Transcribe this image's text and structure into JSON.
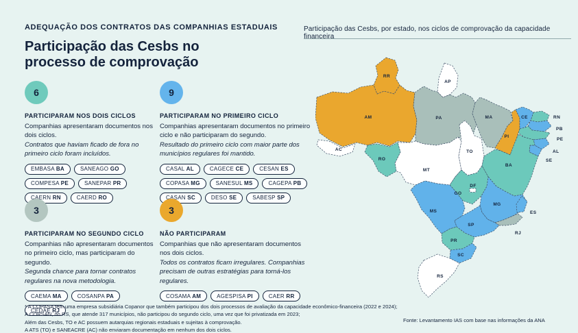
{
  "header": {
    "kicker": "ADEQUAÇÃO DOS CONTRATOS DAS COMPANHIAS ESTADUAIS",
    "title": "Participação das Cesbs no processo de comprovação",
    "map_caption": "Participação das Cesbs, por estado, nos ciclos de comprovação da capacidade financeira"
  },
  "sections": [
    {
      "count": "6",
      "circle_color": "#6fcabc",
      "heading": "PARTICIPARAM NOS DOIS CICLOS",
      "body": "Companhias apresentaram documentos nos dois ciclos.",
      "note": "Contratos que haviam ficado de fora no primeiro ciclo foram incluídos.",
      "tags": [
        {
          "company": "EMBASA",
          "uf": "BA"
        },
        {
          "company": "SANEAGO",
          "uf": "GO"
        },
        {
          "company": "COMPESA",
          "uf": "PE"
        },
        {
          "company": "SANEPAR",
          "uf": "PR"
        },
        {
          "company": "CAERN",
          "uf": "RN"
        },
        {
          "company": "CAERD",
          "uf": "RO"
        }
      ]
    },
    {
      "count": "9",
      "circle_color": "#64b4ec",
      "heading": "PARTICIPARAM NO PRIMEIRO CICLO",
      "body": "Companhias apresentaram documentos no primeiro ciclo e não participaram do segundo.",
      "note": "Resultado do primeiro ciclo com maior parte dos municípios regulares foi mantido.",
      "tags": [
        {
          "company": "CASAL",
          "uf": "AL"
        },
        {
          "company": "CAGECE",
          "uf": "CE"
        },
        {
          "company": "CESAN",
          "uf": "ES"
        },
        {
          "company": "COPASA",
          "uf": "MG"
        },
        {
          "company": "SANESUL",
          "uf": "MS"
        },
        {
          "company": "CAGEPA",
          "uf": "PB"
        },
        {
          "company": "CASAN",
          "uf": "SC"
        },
        {
          "company": "DESO",
          "uf": "SE"
        },
        {
          "company": "SABESP",
          "uf": "SP"
        }
      ]
    },
    {
      "count": "3",
      "circle_color": "#b3c6c0",
      "heading": "PARTICIPARAM NO SEGUNDO CICLO",
      "body": "Companhias não apresentaram documentos no primeiro ciclo, mas participaram do segundo.",
      "note": "Segunda chance para tornar contratos regulares na nova metodologia.",
      "tags": [
        {
          "company": "CAEMA",
          "uf": "MA"
        },
        {
          "company": "COSANPA",
          "uf": "PA"
        },
        {
          "company": "CEDAE",
          "uf": "RJ"
        }
      ]
    },
    {
      "count": "3",
      "circle_color": "#eaa82d",
      "heading": "NÃO PARTICIPARAM",
      "body": "Companhias que não apresentaram documentos nos dois ciclos.",
      "note": "Todos os contratos ficam irregulares. Companhias precisam de outras estratégias para torná-los regulares.",
      "tags": [
        {
          "company": "COSAMA",
          "uf": "AM"
        },
        {
          "company": "AGESPISA",
          "uf": "PI"
        },
        {
          "company": "CAER",
          "uf": "RR"
        }
      ]
    }
  ],
  "footnotes": [
    "* A COPASA tem uma empresa subsidiária Copanor que também participou dos dois processos de avaliação da capacidade econômico-financeira (2022 e 2024);",
    "A CORSAN, do RS, que atende 317 municípios, não participou do segundo ciclo, uma vez que foi privatizada em 2023;",
    "Além das Cesbs, TO e AC possuem autarquias regionais estaduais e sujeitas à comprovação.",
    "A ATS (TO) e SANEACRE (AC) não enviaram documentação em nenhum dos dois ciclos."
  ],
  "source": "Fonte: Levantamento IAS com base nas informações da ANA",
  "map": {
    "category_colors": {
      "dois_ciclos": "#6cc9bb",
      "primeiro_ciclo": "#61b2ea",
      "segundo_ciclo": "#a9bfba",
      "nao_participaram": "#eaa72e",
      "sem_categoria": "#ffffff"
    },
    "states": [
      {
        "id": "RR",
        "category": "nao_participaram"
      },
      {
        "id": "AP",
        "category": "sem_categoria"
      },
      {
        "id": "AM",
        "category": "nao_participaram"
      },
      {
        "id": "PA",
        "category": "segundo_ciclo"
      },
      {
        "id": "MA",
        "category": "segundo_ciclo"
      },
      {
        "id": "PI",
        "category": "nao_participaram"
      },
      {
        "id": "CE",
        "category": "primeiro_ciclo"
      },
      {
        "id": "RN",
        "category": "dois_ciclos"
      },
      {
        "id": "PB",
        "category": "primeiro_ciclo"
      },
      {
        "id": "PE",
        "category": "dois_ciclos"
      },
      {
        "id": "AL",
        "category": "primeiro_ciclo"
      },
      {
        "id": "SE",
        "category": "primeiro_ciclo"
      },
      {
        "id": "AC",
        "category": "sem_categoria"
      },
      {
        "id": "RO",
        "category": "dois_ciclos"
      },
      {
        "id": "MT",
        "category": "sem_categoria"
      },
      {
        "id": "TO",
        "category": "sem_categoria"
      },
      {
        "id": "BA",
        "category": "dois_ciclos"
      },
      {
        "id": "GO",
        "category": "dois_ciclos"
      },
      {
        "id": "DF",
        "category": "sem_categoria"
      },
      {
        "id": "MG",
        "category": "primeiro_ciclo"
      },
      {
        "id": "ES",
        "category": "primeiro_ciclo"
      },
      {
        "id": "RJ",
        "category": "segundo_ciclo"
      },
      {
        "id": "MS",
        "category": "primeiro_ciclo"
      },
      {
        "id": "SP",
        "category": "primeiro_ciclo"
      },
      {
        "id": "PR",
        "category": "dois_ciclos"
      },
      {
        "id": "SC",
        "category": "primeiro_ciclo"
      },
      {
        "id": "RS",
        "category": "sem_categoria"
      }
    ]
  },
  "chart_data": {
    "type": "heatmap",
    "subtype": "choropleth-map-brazil",
    "title": "Participação das Cesbs, por estado, nos ciclos de comprovação da capacidade financeira",
    "groups": [
      {
        "label": "Participaram nos dois ciclos",
        "count": 6,
        "color": "#6cc9bb",
        "states": [
          "BA",
          "GO",
          "PE",
          "PR",
          "RN",
          "RO"
        ],
        "companies": [
          "EMBASA",
          "SANEAGO",
          "COMPESA",
          "SANEPAR",
          "CAERN",
          "CAERD"
        ]
      },
      {
        "label": "Participaram no primeiro ciclo",
        "count": 9,
        "color": "#61b2ea",
        "states": [
          "AL",
          "CE",
          "ES",
          "MG",
          "MS",
          "PB",
          "SC",
          "SE",
          "SP"
        ],
        "companies": [
          "CASAL",
          "CAGECE",
          "CESAN",
          "COPASA",
          "SANESUL",
          "CAGEPA",
          "CASAN",
          "DESO",
          "SABESP"
        ]
      },
      {
        "label": "Participaram no segundo ciclo",
        "count": 3,
        "color": "#a9bfba",
        "states": [
          "MA",
          "PA",
          "RJ"
        ],
        "companies": [
          "CAEMA",
          "COSANPA",
          "CEDAE"
        ]
      },
      {
        "label": "Não participaram",
        "count": 3,
        "color": "#eaa72e",
        "states": [
          "AM",
          "PI",
          "RR"
        ],
        "companies": [
          "COSAMA",
          "AGESPISA",
          "CAER"
        ]
      }
    ],
    "uncategorized_states": [
      "AC",
      "AP",
      "DF",
      "MT",
      "RS",
      "TO"
    ],
    "legend_position": "left-text-blocks",
    "grid": false
  }
}
